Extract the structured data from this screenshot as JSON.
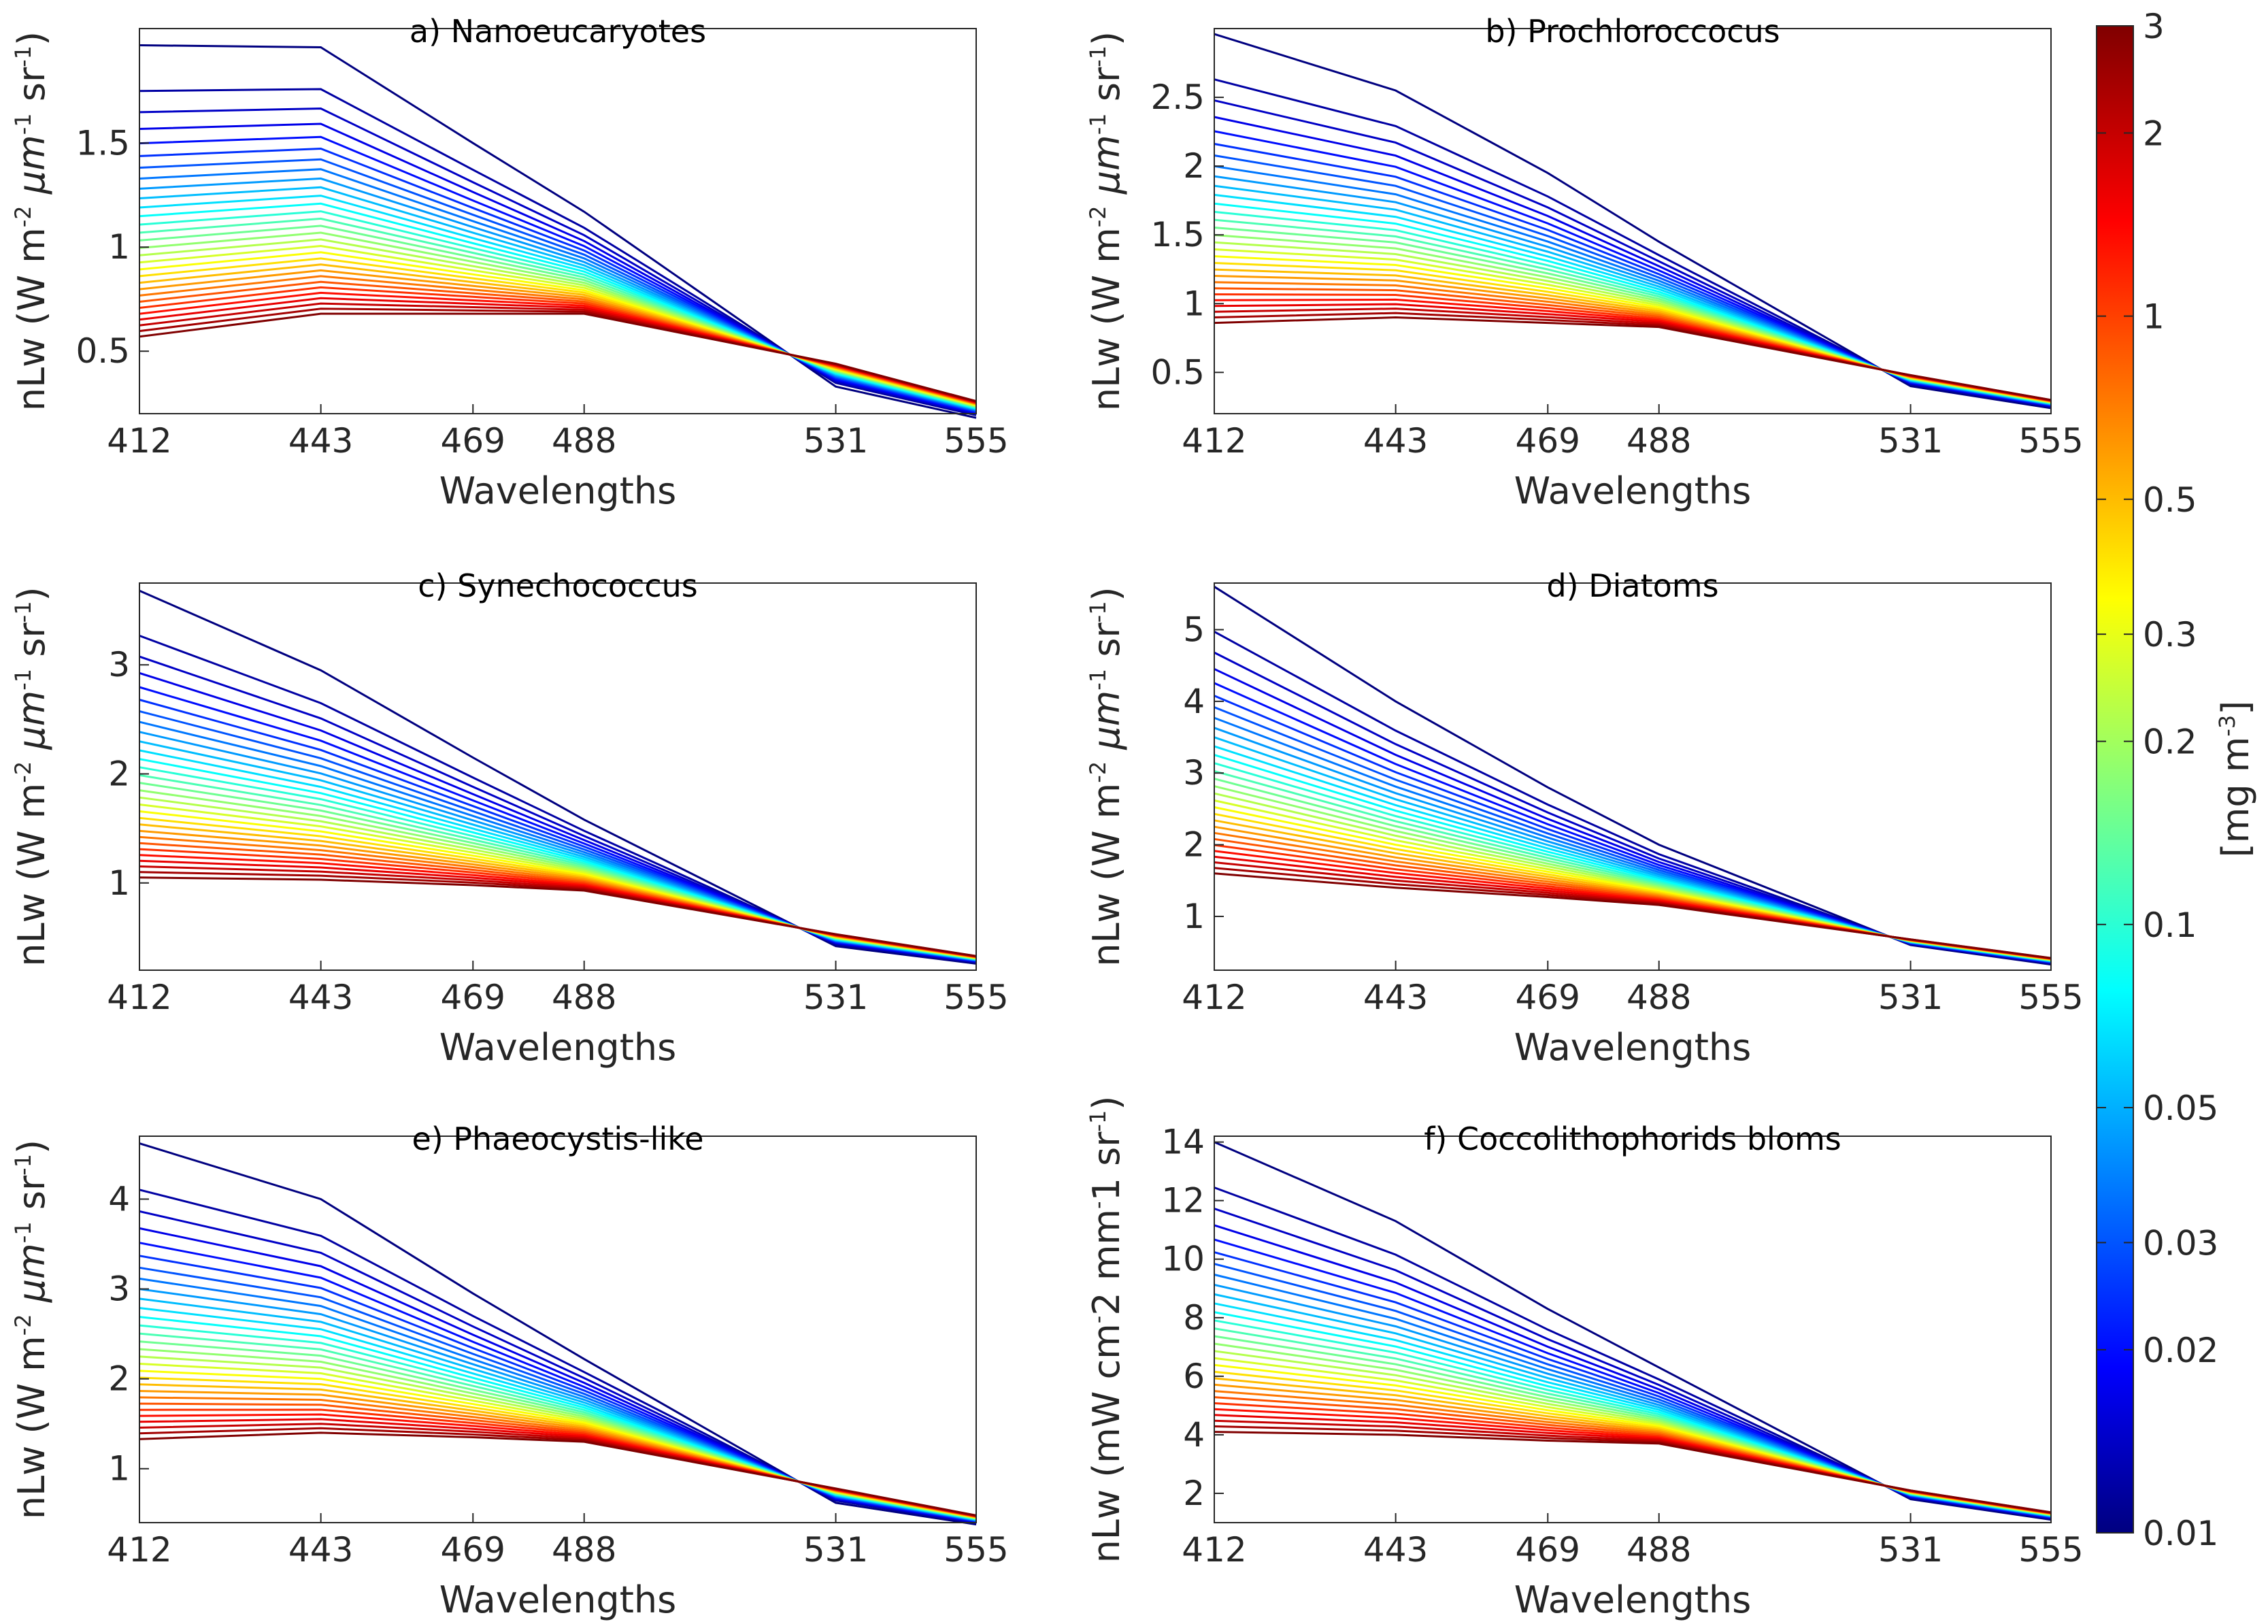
{
  "chart_data": [
    {
      "type": "line",
      "title": "a) Nanoeucaryotes",
      "xlabel": "Wavelengths",
      "ylabel": {
        "main": "nLw (W m",
        "exp1": "-2",
        "mu": " μm",
        "exp2": "-1",
        "sr": " sr",
        "exp3": "-1",
        "close": ")"
      },
      "x": [
        412,
        443,
        469,
        488,
        531,
        555
      ],
      "xticks": [
        "412",
        "443",
        "469",
        "488",
        "531",
        "555"
      ],
      "yticks": [
        0.5,
        1,
        1.5
      ],
      "ytick_labels": [
        "0.5",
        "1",
        "1.5"
      ],
      "ylim": [
        0.2,
        2.05
      ],
      "n_curves": 30,
      "series_low_chl": {
        "name": "0.01 mg m-3",
        "values": [
          1.97,
          1.96,
          1.5,
          1.17,
          0.33,
          0.18
        ]
      },
      "series_high_chl": {
        "name": "3 mg m-3",
        "values": [
          0.57,
          0.68,
          0.68,
          0.68,
          0.44,
          0.26
        ]
      }
    },
    {
      "type": "line",
      "title": "b) Prochloroccocus",
      "xlabel": "Wavelengths",
      "ylabel": {
        "main": "nLw (W m",
        "exp1": "-2",
        "mu": " μm",
        "exp2": "-1",
        "sr": " sr",
        "exp3": "-1",
        "close": ")"
      },
      "x": [
        412,
        443,
        469,
        488,
        531,
        555
      ],
      "xticks": [
        "412",
        "443",
        "469",
        "488",
        "531",
        "555"
      ],
      "yticks": [
        0.5,
        1,
        1.5,
        2,
        2.5
      ],
      "ytick_labels": [
        "0.5",
        "1",
        "1.5",
        "2",
        "2.5"
      ],
      "ylim": [
        0.2,
        3.0
      ],
      "n_curves": 30,
      "series_low_chl": {
        "name": "0.01 mg m-3",
        "values": [
          2.96,
          2.55,
          1.95,
          1.45,
          0.4,
          0.24
        ]
      },
      "series_high_chl": {
        "name": "3 mg m-3",
        "values": [
          0.86,
          0.9,
          0.86,
          0.83,
          0.48,
          0.3
        ]
      }
    },
    {
      "type": "line",
      "title": "c) Synechococcus",
      "xlabel": "Wavelengths",
      "ylabel": {
        "main": "nLw (W m",
        "exp1": "-2",
        "mu": " μm",
        "exp2": "-1",
        "sr": " sr",
        "exp3": "-1",
        "close": ")"
      },
      "x": [
        412,
        443,
        469,
        488,
        531,
        555
      ],
      "xticks": [
        "412",
        "443",
        "469",
        "488",
        "531",
        "555"
      ],
      "yticks": [
        1,
        2,
        3
      ],
      "ytick_labels": [
        "1",
        "2",
        "3"
      ],
      "ylim": [
        0.2,
        3.75
      ],
      "n_curves": 30,
      "series_low_chl": {
        "name": "0.01 mg m-3",
        "values": [
          3.68,
          2.95,
          2.15,
          1.58,
          0.42,
          0.26
        ]
      },
      "series_high_chl": {
        "name": "3 mg m-3",
        "values": [
          1.05,
          1.03,
          0.98,
          0.93,
          0.53,
          0.33
        ]
      }
    },
    {
      "type": "line",
      "title": "d) Diatoms",
      "xlabel": "Wavelengths",
      "ylabel": {
        "main": "nLw (W m",
        "exp1": "-2",
        "mu": " μm",
        "exp2": "-1",
        "sr": " sr",
        "exp3": "-1",
        "close": ")"
      },
      "x": [
        412,
        443,
        469,
        488,
        531,
        555
      ],
      "xticks": [
        "412",
        "443",
        "469",
        "488",
        "531",
        "555"
      ],
      "yticks": [
        1,
        2,
        3,
        4,
        5
      ],
      "ytick_labels": [
        "1",
        "2",
        "3",
        "4",
        "5"
      ],
      "ylim": [
        0.25,
        5.65
      ],
      "n_curves": 30,
      "series_low_chl": {
        "name": "0.01 mg m-3",
        "values": [
          5.6,
          4.0,
          2.8,
          2.0,
          0.6,
          0.33
        ]
      },
      "series_high_chl": {
        "name": "3 mg m-3",
        "values": [
          1.6,
          1.4,
          1.27,
          1.16,
          0.68,
          0.42
        ]
      }
    },
    {
      "type": "line",
      "title": "e) Phaeocystis-like",
      "xlabel": "Wavelengths",
      "ylabel": {
        "main": "nLw (W m",
        "exp1": "-2",
        "mu": " μm",
        "exp2": "-1",
        "sr": " sr",
        "exp3": "-1",
        "close": ")"
      },
      "x": [
        412,
        443,
        469,
        488,
        531,
        555
      ],
      "xticks": [
        "412",
        "443",
        "469",
        "488",
        "531",
        "555"
      ],
      "yticks": [
        1,
        2,
        3,
        4
      ],
      "ytick_labels": [
        "1",
        "2",
        "3",
        "4"
      ],
      "ylim": [
        0.4,
        4.7
      ],
      "n_curves": 30,
      "series_low_chl": {
        "name": "0.01 mg m-3",
        "values": [
          4.62,
          4.0,
          2.95,
          2.22,
          0.62,
          0.38
        ]
      },
      "series_high_chl": {
        "name": "3 mg m-3",
        "values": [
          1.33,
          1.4,
          1.35,
          1.3,
          0.78,
          0.48
        ]
      }
    },
    {
      "type": "line",
      "title": "f) Coccolithophorids bloms",
      "xlabel": "Wavelengths",
      "ylabel": {
        "main": "nLw (mW cm",
        "exp1": "-",
        "mu": "2 mm",
        "exp2": "-",
        "sr": "1 sr",
        "exp3": "-1",
        "close": ")"
      },
      "x": [
        412,
        443,
        469,
        488,
        531,
        555
      ],
      "xticks": [
        "412",
        "443",
        "469",
        "488",
        "531",
        "555"
      ],
      "yticks": [
        2,
        4,
        6,
        8,
        10,
        12,
        14
      ],
      "ytick_labels": [
        "2",
        "4",
        "6",
        "8",
        "10",
        "12",
        "14"
      ],
      "ylim": [
        1.0,
        14.2
      ],
      "n_curves": 30,
      "series_low_chl": {
        "name": "0.01 mg m-3",
        "values": [
          14.0,
          11.3,
          8.3,
          6.3,
          1.8,
          1.1
        ]
      },
      "series_high_chl": {
        "name": "3 mg m-3",
        "values": [
          4.1,
          4.0,
          3.8,
          3.7,
          2.1,
          1.35
        ]
      }
    }
  ],
  "colorbar": {
    "label_main": "[mg m",
    "label_exp": "-3",
    "label_close": "]",
    "scale": "log",
    "range": [
      0.01,
      3
    ],
    "colormap": "jet",
    "ticks": [
      0.01,
      0.02,
      0.03,
      0.05,
      0.1,
      0.2,
      0.3,
      0.5,
      1,
      2,
      3
    ],
    "tick_labels": [
      "0.01",
      "0.02",
      "0.03",
      "0.05",
      "0.1",
      "0.2",
      "0.3",
      "0.5",
      "1",
      "2",
      "3"
    ]
  }
}
